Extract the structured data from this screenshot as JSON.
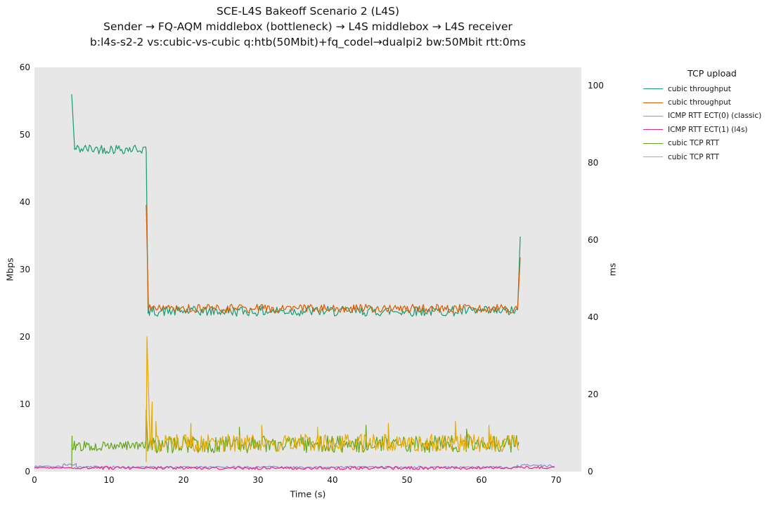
{
  "title": {
    "line1": "SCE-L4S Bakeoff Scenario 2 (L4S)",
    "line2": "Sender → FQ-AQM middlebox (bottleneck) → L4S middlebox → L4S receiver",
    "line3": "b:l4s-s2-2 vs:cubic-vs-cubic q:htb(50Mbit)+fq_codel→dualpi2 bw:50Mbit rtt:0ms"
  },
  "legend": {
    "title": "TCP upload",
    "items": [
      {
        "label": "cubic throughput"
      },
      {
        "label": "cubic throughput"
      },
      {
        "label": "ICMP RTT ECT(0) (classic)"
      },
      {
        "label": "ICMP RTT ECT(1) (l4s)"
      },
      {
        "label": "cubic TCP RTT"
      },
      {
        "label": "cubic TCP RTT"
      }
    ]
  },
  "colors": {
    "figure_background": "#ffffff",
    "plot_background": "#e7e7e7",
    "text": "#141414",
    "teal": "#1b9e77",
    "orange": "#d95f02",
    "purple": "#918fd0",
    "magenta": "#e7298a",
    "green": "#66a61e",
    "yellow": "#e6ab02"
  },
  "chart_data": {
    "type": "line",
    "x_label": "Time (s)",
    "y_left_label": "Mbps",
    "y_right_label": "ms",
    "x_range": [
      0,
      73.4
    ],
    "y_left_range": [
      0,
      60
    ],
    "y_right_range": [
      0,
      104.7
    ],
    "x_ticks": [
      0,
      10,
      20,
      30,
      40,
      50,
      60,
      70
    ],
    "y_left_ticks": [
      0,
      10,
      20,
      30,
      40,
      50,
      60
    ],
    "y_right_ticks": [
      0,
      20,
      40,
      60,
      80,
      100
    ],
    "grid": false,
    "legend_position": "outside-upper-right",
    "noise_seed": 42,
    "series": [
      {
        "name": "cubic throughput",
        "axis": "left",
        "unit": "Mbps",
        "color": "#1b9e77",
        "summary": "starts t=5 at 56 Mbps, plateau ~48 Mbps until t=15, drops to ~24 Mbps plateau until t=65, final spike to ~35 Mbps",
        "segments": [
          {
            "t0": 5.0,
            "t1": 5.4,
            "v0": 56.0,
            "v1": 47.8
          },
          {
            "t0": 5.4,
            "t1": 15.0,
            "v0": 47.9,
            "v1": 47.9,
            "noise": 0.75,
            "step": 0.18
          },
          {
            "t0": 15.0,
            "t1": 15.25,
            "v0": 47.5,
            "v1": 23.5
          },
          {
            "t0": 15.25,
            "t1": 64.85,
            "v0": 23.8,
            "v1": 23.8,
            "noise": 0.75,
            "step": 0.18
          },
          {
            "t0": 64.85,
            "t1": 65.2,
            "v0": 24.0,
            "v1": 34.9
          }
        ]
      },
      {
        "name": "cubic throughput",
        "axis": "left",
        "unit": "Mbps",
        "color": "#d95f02",
        "summary": "starts t=15 spiking to ~40 Mbps, plateau ~24 Mbps until t=65, final spike to ~32 Mbps",
        "segments": [
          {
            "t0": 15.0,
            "t1": 15.3,
            "v0": 39.6,
            "v1": 24.2
          },
          {
            "t0": 15.3,
            "t1": 64.85,
            "v0": 24.2,
            "v1": 24.2,
            "noise": 0.65,
            "step": 0.18
          },
          {
            "t0": 64.85,
            "t1": 65.2,
            "v0": 24.3,
            "v1": 31.8
          }
        ]
      },
      {
        "name": "ICMP RTT ECT(0) (classic)",
        "axis": "right",
        "unit": "ms",
        "color": "#918fd0",
        "summary": "~1.3 ms baseline t=0-70, small bump ~2 ms near t=4-5, slight rise after t=65",
        "segments": [
          {
            "t0": 0.0,
            "t1": 3.8,
            "v0": 1.35,
            "v1": 1.3,
            "noise": 0.18,
            "step": 0.2
          },
          {
            "t0": 3.8,
            "t1": 5.6,
            "v0": 1.9,
            "v1": 1.8,
            "noise": 0.3,
            "step": 0.2
          },
          {
            "t0": 5.6,
            "t1": 64.8,
            "v0": 1.15,
            "v1": 1.1,
            "noise": 0.3,
            "step": 0.2
          },
          {
            "t0": 64.8,
            "t1": 69.8,
            "v0": 1.6,
            "v1": 1.4,
            "noise": 0.35,
            "step": 0.2
          }
        ]
      },
      {
        "name": "ICMP RTT ECT(1) (l4s)",
        "axis": "right",
        "unit": "ms",
        "color": "#e7298a",
        "summary": "~1 ms noisy baseline t=0-70",
        "segments": [
          {
            "t0": 0.0,
            "t1": 5.0,
            "v0": 1.0,
            "v1": 1.0,
            "noise": 0.15,
            "step": 0.2
          },
          {
            "t0": 5.0,
            "t1": 64.8,
            "v0": 0.95,
            "v1": 0.95,
            "noise": 0.4,
            "step": 0.2
          },
          {
            "t0": 64.8,
            "t1": 69.8,
            "v0": 1.15,
            "v1": 1.0,
            "noise": 0.3,
            "step": 0.2
          }
        ]
      },
      {
        "name": "cubic TCP RTT",
        "axis": "right",
        "unit": "ms",
        "color": "#66a61e",
        "summary": "starts t=5, ~7 ms noisy band (4-10 ms) until t=65, spike ~16 ms at t=15",
        "segments": [
          {
            "t0": 5.0,
            "t1": 5.05,
            "v0": 0.8,
            "v1": 9.2
          },
          {
            "t0": 5.05,
            "t1": 15.0,
            "v0": 6.6,
            "v1": 6.8,
            "noise": 1.3,
            "step": 0.15
          },
          {
            "t0": 15.0,
            "t1": 15.2,
            "v0": 16.0,
            "v1": 7.0
          },
          {
            "t0": 15.2,
            "t1": 65.0,
            "v0": 7.0,
            "v1": 7.2,
            "noise": 2.2,
            "step": 0.15,
            "spikes": [
              [
                27.5,
                11.5
              ],
              [
                44.5,
                12.0
              ],
              [
                58.0,
                11.0
              ]
            ]
          }
        ]
      },
      {
        "name": "cubic TCP RTT",
        "axis": "right",
        "unit": "ms",
        "color": "#e6ab02",
        "summary": "starts t=15 with ~35 ms spike, then ~7.5 ms noisy band (4-13 ms) until t=65",
        "segments": [
          {
            "t0": 15.0,
            "t1": 15.1,
            "v0": 2.5,
            "v1": 34.9
          },
          {
            "t0": 15.1,
            "t1": 15.5,
            "v0": 34.9,
            "v1": 8.0
          },
          {
            "t0": 15.5,
            "t1": 65.0,
            "v0": 7.4,
            "v1": 7.4,
            "noise": 2.3,
            "step": 0.15,
            "spikes": [
              [
                15.8,
                18.0
              ],
              [
                16.3,
                13.0
              ],
              [
                21.0,
                12.5
              ],
              [
                30.5,
                12.0
              ],
              [
                38.0,
                11.5
              ],
              [
                47.5,
                12.5
              ],
              [
                56.5,
                13.0
              ],
              [
                61.0,
                12.0
              ]
            ]
          }
        ]
      }
    ]
  }
}
